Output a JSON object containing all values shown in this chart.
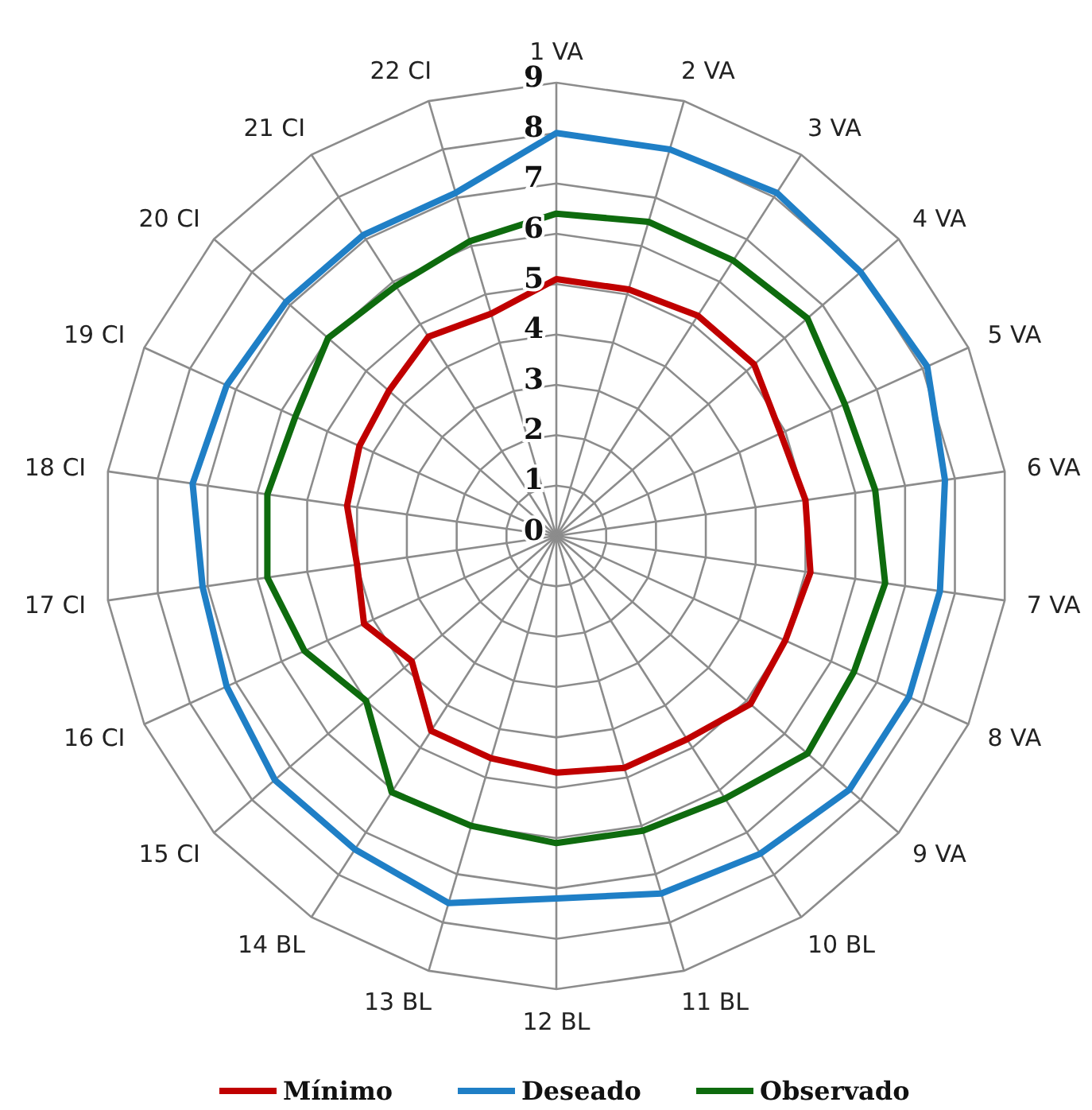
{
  "chart_data": {
    "type": "radar",
    "categories": [
      "1 VA",
      "2 VA",
      "3 VA",
      "4 VA",
      "5 VA",
      "6 VA",
      "7 VA",
      "8 VA",
      "9 VA",
      "10 BL",
      "11 BL",
      "12 BL",
      "13 BL",
      "14 BL",
      "15 CI",
      "16 CI",
      "17 CI",
      "18 CI",
      "19 CI",
      "20 CI",
      "21 CI",
      "22 CI"
    ],
    "series": [
      {
        "name": "Mínimo",
        "color": "#c00000",
        "values": [
          5.1,
          5.1,
          5.2,
          5.2,
          4.9,
          5.0,
          5.1,
          5.0,
          5.1,
          4.8,
          4.8,
          4.7,
          4.6,
          4.6,
          3.8,
          4.2,
          4.0,
          4.2,
          4.3,
          4.4,
          4.7,
          4.6
        ]
      },
      {
        "name": "Deseado",
        "color": "#1f7fc6",
        "values": [
          8.0,
          8.0,
          8.1,
          8.0,
          8.1,
          7.8,
          7.7,
          7.7,
          7.7,
          7.5,
          7.4,
          7.2,
          7.6,
          7.4,
          7.4,
          7.2,
          7.1,
          7.3,
          7.2,
          7.1,
          7.1,
          7.1
        ]
      },
      {
        "name": "Observado",
        "color": "#0e6b0e",
        "values": [
          6.4,
          6.5,
          6.5,
          6.6,
          6.3,
          6.4,
          6.6,
          6.5,
          6.6,
          6.2,
          6.1,
          6.1,
          6.0,
          6.05,
          5.0,
          5.5,
          5.8,
          5.8,
          5.7,
          6.0,
          5.9,
          6.1
        ]
      }
    ],
    "ylim": [
      0,
      9
    ],
    "yticks": [
      0,
      1,
      2,
      3,
      4,
      5,
      6,
      7,
      8,
      9
    ],
    "grid": true,
    "legend": "bottom"
  }
}
